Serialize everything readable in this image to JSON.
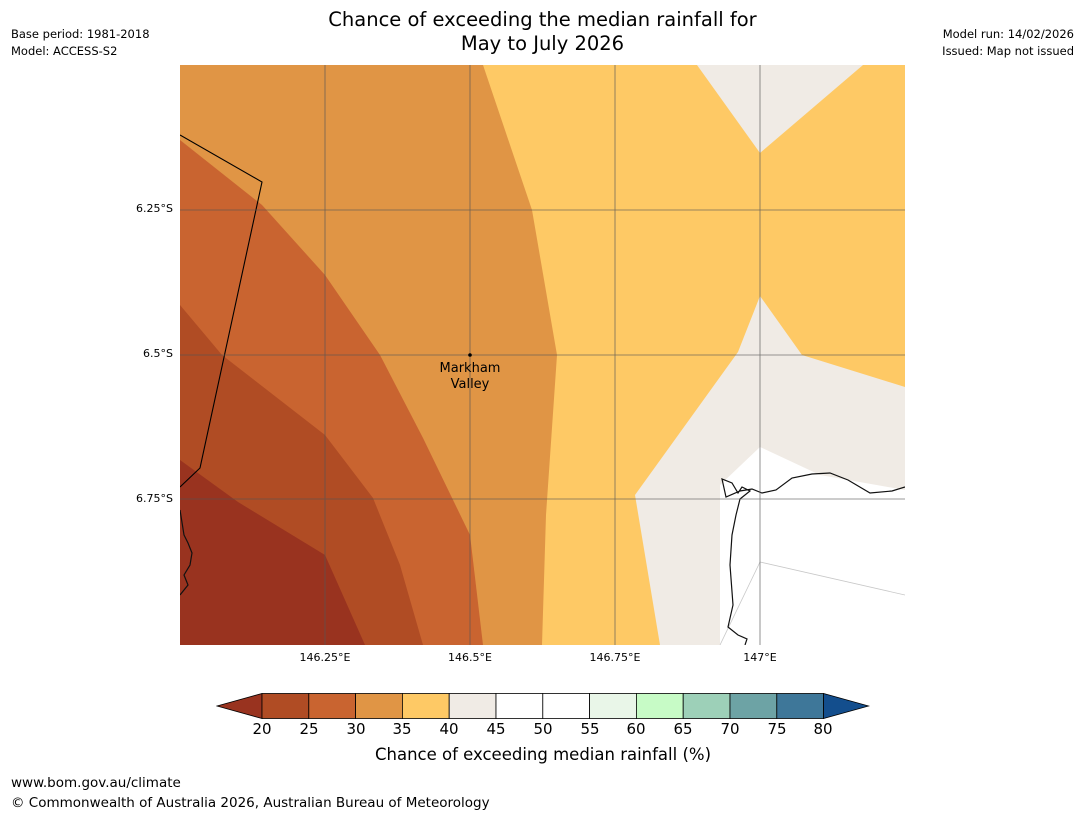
{
  "header": {
    "title_line1": "Chance of exceeding the median rainfall for",
    "title_line2": "May to July 2026",
    "base_period": "Base period: 1981-2018",
    "model": "Model: ACCESS-S2",
    "model_run": "Model run: 14/02/2026",
    "issued": "Issued: Map not issued"
  },
  "map": {
    "lat_labels": [
      "6.25°S",
      "6.5°S",
      "6.75°S"
    ],
    "lon_labels": [
      "146.25°E",
      "146.5°E",
      "146.75°E",
      "147°E"
    ],
    "place_label_line1": "Markham",
    "place_label_line2": "Valley"
  },
  "legend": {
    "ticks": [
      "20",
      "25",
      "30",
      "35",
      "40",
      "45",
      "50",
      "55",
      "60",
      "65",
      "70",
      "75",
      "80"
    ],
    "colors": [
      "#99331f",
      "#b04c24",
      "#c96430",
      "#e09545",
      "#fec965",
      "#f0ebe5",
      "#ffffff",
      "#ffffff",
      "#e9f6e8",
      "#c7fbc6",
      "#9dd0b8",
      "#6da3a5",
      "#3e7799",
      "#134e8d"
    ],
    "label": "Chance of exceeding median rainfall (%)"
  },
  "footer": {
    "url": "www.bom.gov.au/climate",
    "copyright": "© Commonwealth of Australia 2026, Australian Bureau of Meteorology"
  }
}
